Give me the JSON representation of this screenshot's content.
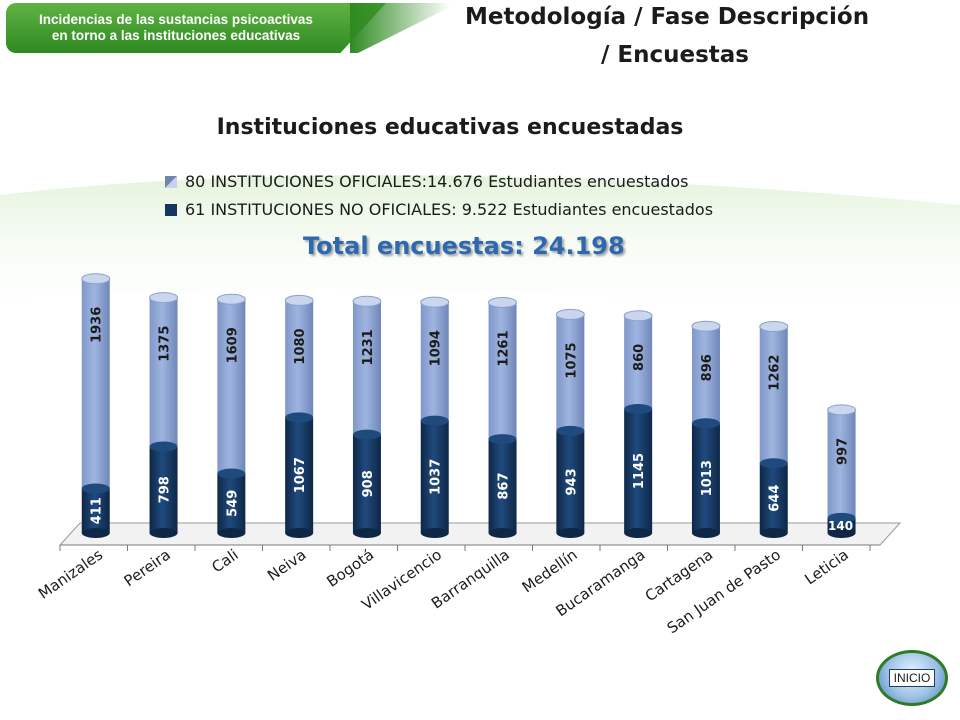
{
  "header": {
    "badge_line1": "Incidencias de  las sustancias psicoactivas",
    "badge_line2": "en torno a las instituciones educativas",
    "title_line1": "Metodología   / Fase Descripción",
    "title_line2": "/ Encuestas"
  },
  "nav": {
    "inicio_label": "INICIO"
  },
  "colors": {
    "oficiales": "#9fb5e0",
    "no_oficiales": "#16365f",
    "total_text": "#2d68b0",
    "badge_green": "#3d9a2c"
  },
  "chart_data": {
    "type": "bar",
    "stacked": true,
    "title": "Instituciones educativas encuestadas",
    "subtitle": "Total encuestas: 24.198",
    "categories": [
      "Manizales",
      "Pereira",
      "Cali",
      "Neiva",
      "Bogotá",
      "Villavicencio",
      "Barranquilla",
      "Medellín",
      "Bucaramanga",
      "Cartagena",
      "San Juan de Pasto",
      "Leticia"
    ],
    "series": [
      {
        "name": "61 INSTITUCIONES NO OFICIALES: 9.522 Estudiantes encuestados",
        "values": [
          411,
          798,
          549,
          1067,
          908,
          1037,
          867,
          943,
          1145,
          1013,
          644,
          140
        ]
      },
      {
        "name": "80 INSTITUCIONES OFICIALES:14.676 Estudiantes encuestados",
        "values": [
          1936,
          1375,
          1609,
          1080,
          1231,
          1094,
          1261,
          1075,
          860,
          896,
          1262,
          997
        ]
      }
    ],
    "legend": "top",
    "grid": false
  }
}
